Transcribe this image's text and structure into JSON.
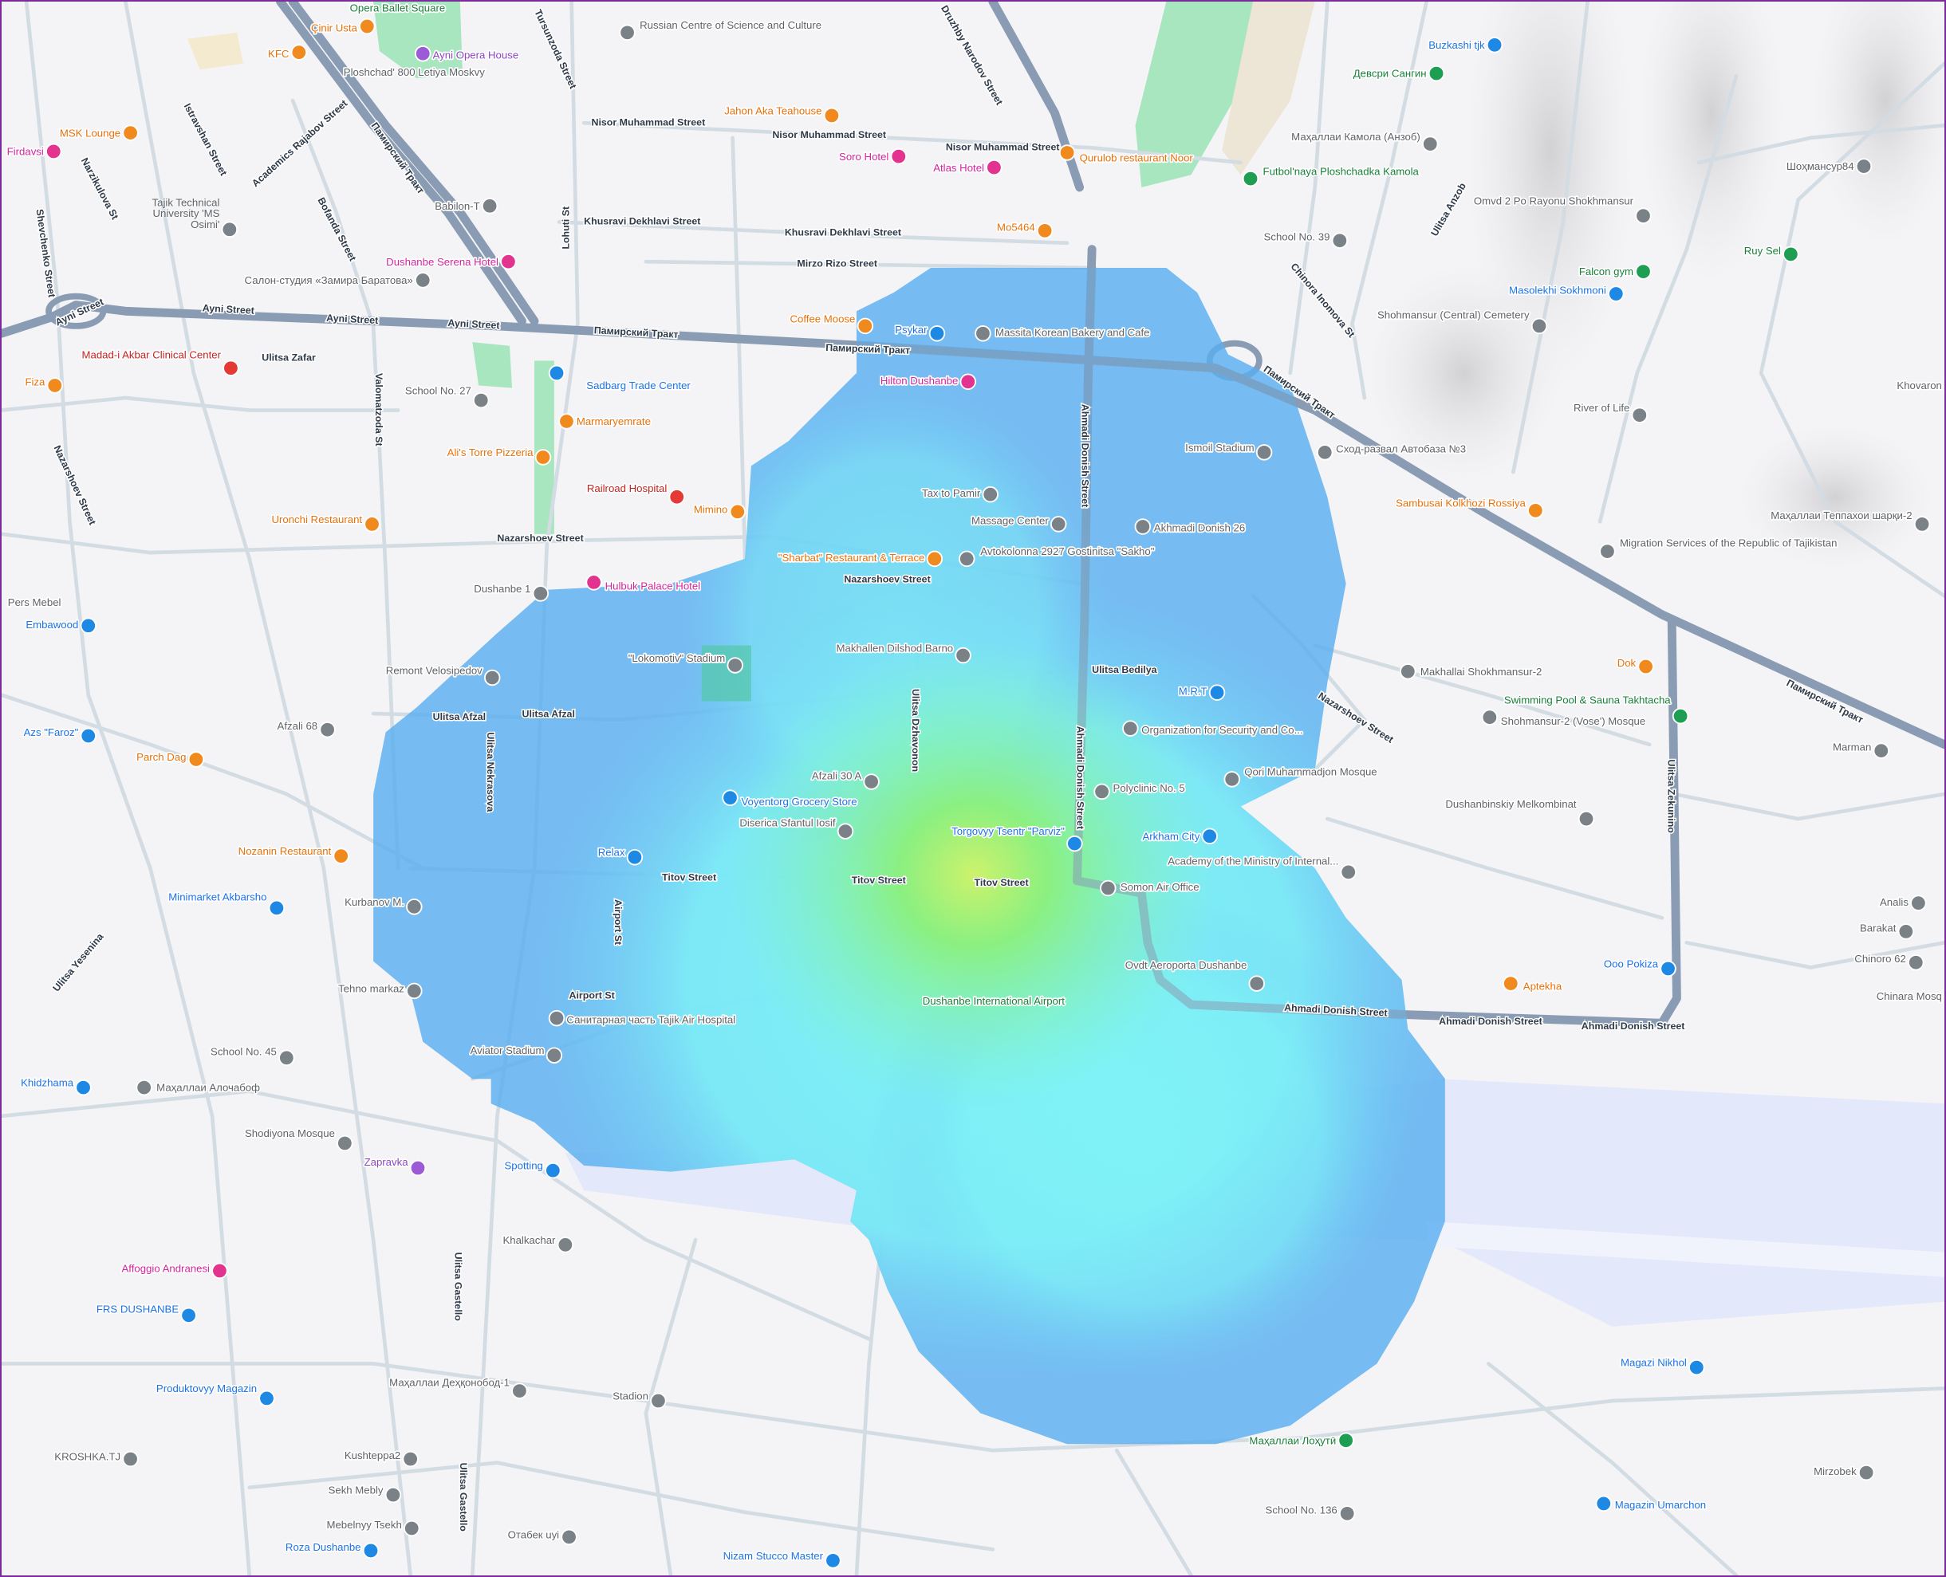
{
  "map": {
    "city": "Dushanbe",
    "heatmap_colors": {
      "low": "#5aaef0",
      "mid": "#7cf2f6",
      "high": "#8ef07a",
      "peak": "#d9f06a"
    },
    "road_colors": {
      "major": "#8a9cb3",
      "minor": "#d3dbe3"
    },
    "park_color": "#a8e6bf",
    "airport_color": "#e3e8fa"
  },
  "roads": [
    "Ayni Street",
    "Ayni Street",
    "Ayni Street",
    "Ayni Street",
    "Памирский Тракт",
    "Памирский Тракт",
    "Памирский Тракт",
    "Памирский Тракт",
    "Памирский Тракт",
    "Nisor Muhammad Street",
    "Nisor Muhammad Street",
    "Nisor Muhammad Street",
    "Khusravi Dekhlavi Street",
    "Khusravi Dekhlavi Street",
    "Mirzo Rizo Street",
    "Nazarshoev Street",
    "Nazarshoev Street",
    "Ahmadi Donish Street",
    "Ahmadi Donish Street",
    "Ahmadi Donish Street",
    "Ahmadi Donish Street",
    "Ahmadi Donish Street",
    "Titov Street",
    "Titov Street",
    "Titov Street",
    "Ulitsa Nekrasova",
    "Ulitsa Gastello",
    "Ulitsa Gastello",
    "Lohuti St",
    "Ulitsa Afzal",
    "Ulitsa Bedilya",
    "Ulitsa Zekunino",
    "Ulitsa Dzhavonon",
    "Ulitsa Anzob",
    "Chinora Inomova St",
    "Ulitsa Yesenina",
    "Shevchenko Street",
    "Narzikulova St",
    "Istravshan Street",
    "Academics Rajabov Street",
    "Bofanda Street",
    "Tursunzoda Street",
    "Druzhby Narodov Street",
    "Valomatzoda St",
    "Nazarshoev Street",
    "Ulitsa Zafar",
    "Airport St",
    "Airport St",
    "Ulitsa Afzal",
    "Nazarshoev Street"
  ],
  "pois": [
    {
      "name": "Opera Ballet Square",
      "type": "park"
    },
    {
      "name": "Çinir Usta",
      "type": "food"
    },
    {
      "name": "KFC",
      "type": "food"
    },
    {
      "name": "Ayni Opera House",
      "type": "culture"
    },
    {
      "name": "Ploshchad' 800 Letiya Moskvy",
      "type": "gray"
    },
    {
      "name": "MSK Lounge",
      "type": "food"
    },
    {
      "name": "Firdavsi",
      "type": "hotel"
    },
    {
      "name": "Tajik Technical University 'MS Osimi'",
      "type": "gray"
    },
    {
      "name": "Babilon-T",
      "type": "gray"
    },
    {
      "name": "Dushanbe Serena Hotel",
      "type": "hotel"
    },
    {
      "name": "Салон-студия «Замира Баратова»",
      "type": "gray"
    },
    {
      "name": "Russian Centre of Science and Culture",
      "type": "gray"
    },
    {
      "name": "Jahon Aka Teahouse",
      "type": "food"
    },
    {
      "name": "Soro Hotel",
      "type": "hotel"
    },
    {
      "name": "Atlas Hotel",
      "type": "hotel"
    },
    {
      "name": "Qurulob restaurant Noor",
      "type": "food"
    },
    {
      "name": "Mo5464",
      "type": "food"
    },
    {
      "name": "Buzkashi tjk",
      "type": "shop"
    },
    {
      "name": "Девсри Сангин",
      "type": "park"
    },
    {
      "name": "Маҳаллаи Камола (Анзоб)",
      "type": "gray"
    },
    {
      "name": "Futbol'naya Ploshchadka Kamola",
      "type": "park"
    },
    {
      "name": "School No. 39",
      "type": "gray"
    },
    {
      "name": "Omvd 2 Po Rayonu Shokhmansur",
      "type": "gray"
    },
    {
      "name": "Шоҳмансур84",
      "type": "gray"
    },
    {
      "name": "Falcon gym",
      "type": "park"
    },
    {
      "name": "Ruy Sel",
      "type": "park"
    },
    {
      "name": "Masolekhi Sokhmoni",
      "type": "shop"
    },
    {
      "name": "Shohmansur (Central) Cemetery",
      "type": "gray"
    },
    {
      "name": "River of Life",
      "type": "gray"
    },
    {
      "name": "Khovaron",
      "type": "gray"
    },
    {
      "name": "Сход-развал Автобаза №3",
      "type": "gray"
    },
    {
      "name": "Sambusai Kolkhozi Rossiya",
      "type": "food"
    },
    {
      "name": "Migration Services of the Republic of Tajikistan",
      "type": "gray"
    },
    {
      "name": "Маҳаллаи Теппахои шарқи-2",
      "type": "gray"
    },
    {
      "name": "Madad-i Akbar Clinical Center",
      "type": "health"
    },
    {
      "name": "Fiza",
      "type": "food"
    },
    {
      "name": "School No. 27",
      "type": "gray"
    },
    {
      "name": "Sadbarg Trade Center",
      "type": "shop"
    },
    {
      "name": "Marmaryemrate",
      "type": "food"
    },
    {
      "name": "Ali's Torre Pizzeria",
      "type": "food"
    },
    {
      "name": "Railroad Hospital",
      "type": "health"
    },
    {
      "name": "Mimino",
      "type": "food"
    },
    {
      "name": "Uronchi Restaurant",
      "type": "food"
    },
    {
      "name": "Dushanbe 1",
      "type": "gray"
    },
    {
      "name": "Hulbuk Palace Hotel",
      "type": "hotel"
    },
    {
      "name": "Pers Mebel",
      "type": "gray"
    },
    {
      "name": "Embawood",
      "type": "shop"
    },
    {
      "name": "Remont Velosipedov",
      "type": "gray"
    },
    {
      "name": "\"Lokomotiv\" Stadium",
      "type": "gray"
    },
    {
      "name": "Afzali 68",
      "type": "gray"
    },
    {
      "name": "Azs \"Faroz\"",
      "type": "shop"
    },
    {
      "name": "Parch Dag",
      "type": "food"
    },
    {
      "name": "Nozanin Restaurant",
      "type": "food"
    },
    {
      "name": "Minimarket Akbarsho",
      "type": "shop"
    },
    {
      "name": "Kurbanov M.",
      "type": "gray"
    },
    {
      "name": "Tehno markaz",
      "type": "gray"
    },
    {
      "name": "School No. 45",
      "type": "gray"
    },
    {
      "name": "Khidzhama",
      "type": "shop"
    },
    {
      "name": "Маҳаллаи Алочабоф",
      "type": "gray"
    },
    {
      "name": "Shodiyona Mosque",
      "type": "gray"
    },
    {
      "name": "Zapravka",
      "type": "culture"
    },
    {
      "name": "Spotting",
      "type": "shop"
    },
    {
      "name": "Khalkachar",
      "type": "gray"
    },
    {
      "name": "Affoggio Andranesi",
      "type": "hotel"
    },
    {
      "name": "FRS DUSHANBE",
      "type": "shop"
    },
    {
      "name": "Produktovyy Magazin",
      "type": "shop"
    },
    {
      "name": "Маҳаллаи Деҳқонобод-1",
      "type": "gray"
    },
    {
      "name": "Stadion",
      "type": "gray"
    },
    {
      "name": "KROSHKA.TJ",
      "type": "gray"
    },
    {
      "name": "Kushteppa2",
      "type": "gray"
    },
    {
      "name": "Sekh Mebly",
      "type": "gray"
    },
    {
      "name": "Mebelnyy Tsekh",
      "type": "gray"
    },
    {
      "name": "Roza Dushanbe",
      "type": "shop"
    },
    {
      "name": "Отабек uyi",
      "type": "gray"
    },
    {
      "name": "Nizam Stucco Master",
      "type": "shop"
    },
    {
      "name": "School No. 136",
      "type": "gray"
    },
    {
      "name": "Magazin Umarchon",
      "type": "shop"
    },
    {
      "name": "Mirzobek",
      "type": "gray"
    },
    {
      "name": "Маҳаллаи Лоҳутӣ",
      "type": "park"
    },
    {
      "name": "Magazi Nikhol",
      "type": "shop"
    },
    {
      "name": "Tax to Pamir",
      "type": "gray"
    },
    {
      "name": "Massage Center",
      "type": "gray"
    },
    {
      "name": "Akhmadi Donish 26",
      "type": "gray"
    },
    {
      "name": "\"Sharbat\" Restaurant & Terrace",
      "type": "food"
    },
    {
      "name": "Avtokolonna 2927 Gostinitsa \"Sakho\"",
      "type": "gray"
    },
    {
      "name": "Makhallen Dilshod Barno",
      "type": "gray"
    },
    {
      "name": "M.R.T",
      "type": "shop"
    },
    {
      "name": "Organization for Security and Co...",
      "type": "gray"
    },
    {
      "name": "Afzali 30 A",
      "type": "gray"
    },
    {
      "name": "Voyentorg Grocery Store",
      "type": "shop"
    },
    {
      "name": "Diserica Sfantul Iosif",
      "type": "gray"
    },
    {
      "name": "Polyclinic No. 5",
      "type": "gray"
    },
    {
      "name": "Qori Muhammadjon Mosque",
      "type": "gray"
    },
    {
      "name": "Arkham City",
      "type": "shop"
    },
    {
      "name": "Torgovyy Tsentr \"Parviz\"",
      "type": "shop"
    },
    {
      "name": "Relax",
      "type": "shop"
    },
    {
      "name": "Somon Air Office",
      "type": "gray"
    },
    {
      "name": "Academy of the Ministry of Internal...",
      "type": "gray"
    },
    {
      "name": "Ovdt Aeroporta Dushanbe",
      "type": "gray"
    },
    {
      "name": "Dushanbe International Airport",
      "type": "park"
    },
    {
      "name": "Aviator Stadium",
      "type": "gray"
    },
    {
      "name": "Санитарная часть Tajik Air Hospital",
      "type": "gray"
    },
    {
      "name": "Hilton Dushanbe",
      "type": "hotel"
    },
    {
      "name": "Psykar",
      "type": "shop"
    },
    {
      "name": "Coffee Moose",
      "type": "food"
    },
    {
      "name": "Massita Korean Bakery and Cafe",
      "type": "gray"
    },
    {
      "name": "Ismoil Stadium",
      "type": "gray"
    },
    {
      "name": "Dok",
      "type": "food"
    },
    {
      "name": "Swimming Pool & Sauna Takhtacha",
      "type": "park"
    },
    {
      "name": "Makhallai Shokhmansur-2",
      "type": "gray"
    },
    {
      "name": "Shohmansur-2 (Vose') Mosque",
      "type": "gray"
    },
    {
      "name": "Marman",
      "type": "gray"
    },
    {
      "name": "Dushanbinskiy Melkombinat",
      "type": "gray"
    },
    {
      "name": "Analis",
      "type": "gray"
    },
    {
      "name": "Barakat",
      "type": "gray"
    },
    {
      "name": "Chinoro 62",
      "type": "gray"
    },
    {
      "name": "Chinara Mosq",
      "type": "gray"
    },
    {
      "name": "Ooo Pokiza",
      "type": "shop"
    },
    {
      "name": "Aptekha",
      "type": "food"
    }
  ]
}
